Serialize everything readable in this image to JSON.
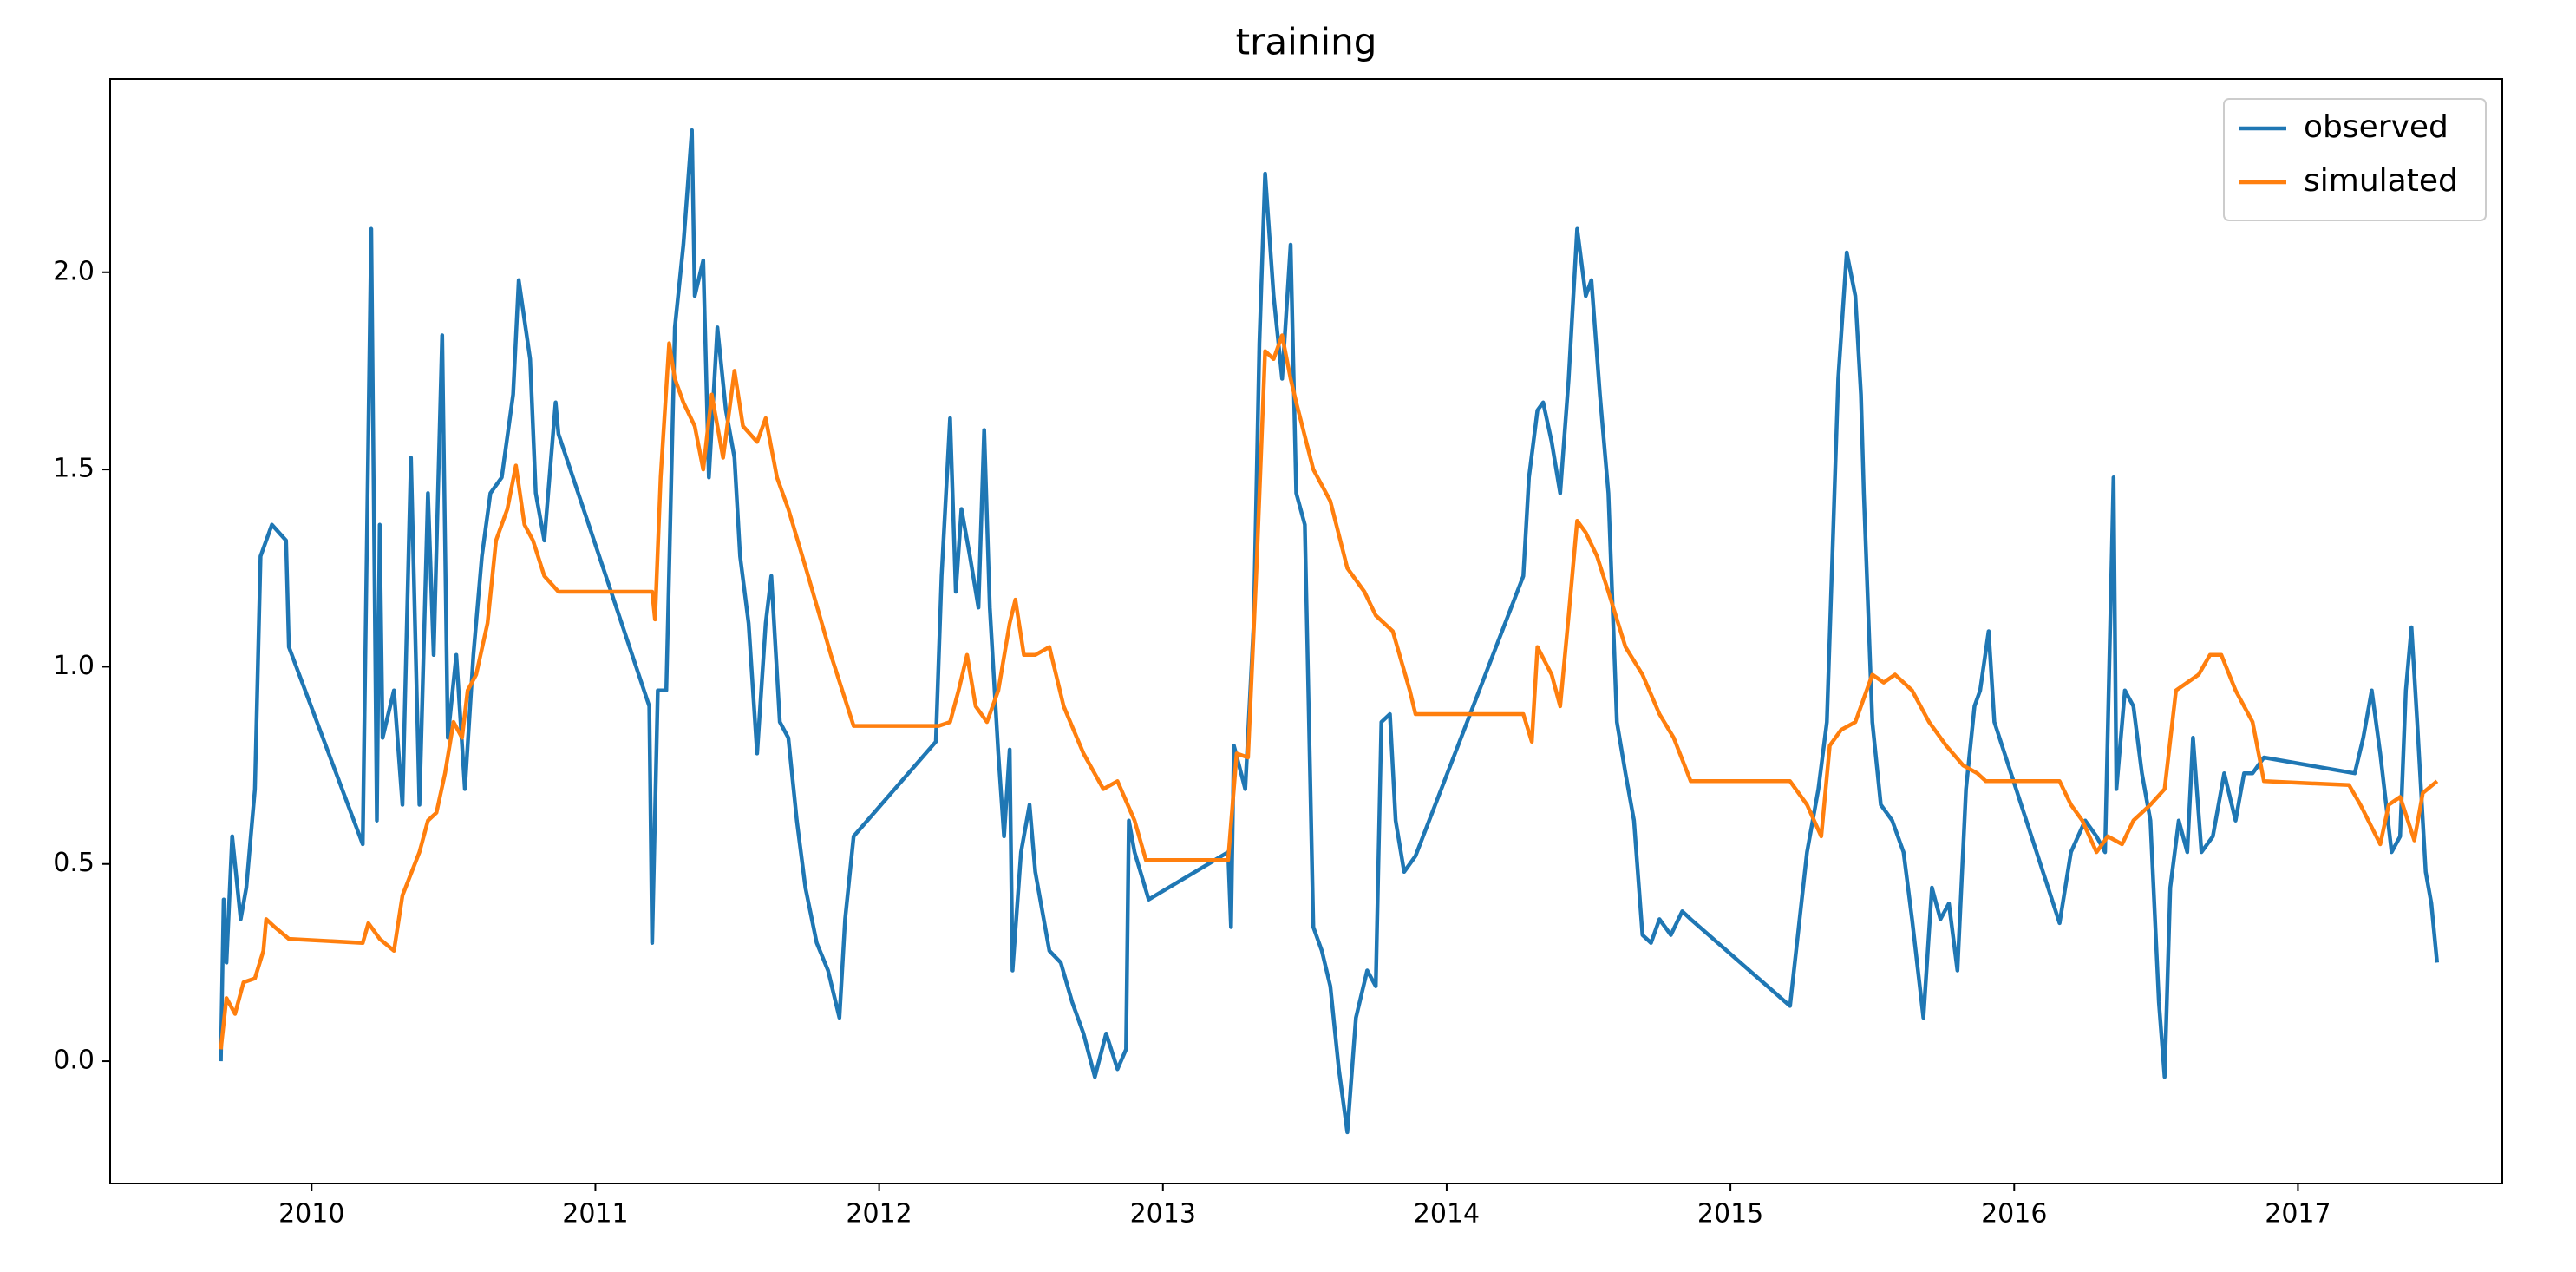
{
  "chart_data": {
    "type": "line",
    "title": "training",
    "xlim": [
      2009.29,
      2017.72
    ],
    "xticks": [
      2010,
      2011,
      2012,
      2013,
      2014,
      2015,
      2016,
      2017
    ],
    "ylim": [
      -0.31,
      2.49
    ],
    "yticks": [
      {
        "value": 0,
        "label": "0.0"
      },
      0.5,
      {
        "value": 1,
        "label": "1.0"
      },
      1.5,
      {
        "value": 2,
        "label": "2.0"
      }
    ],
    "grid": false,
    "legend": "upper right",
    "series": [
      {
        "name": "observed",
        "color": "#1f77b4",
        "x": [
          2009.68,
          2009.69,
          2009.7,
          2009.72,
          2009.75,
          2009.77,
          2009.8,
          2009.82,
          2009.86,
          2009.91,
          2009.92,
          2010.18,
          2010.21,
          2010.23,
          2010.24,
          2010.25,
          2010.29,
          2010.32,
          2010.35,
          2010.38,
          2010.41,
          2010.43,
          2010.46,
          2010.48,
          2010.51,
          2010.54,
          2010.57,
          2010.6,
          2010.63,
          2010.67,
          2010.71,
          2010.73,
          2010.77,
          2010.79,
          2010.82,
          2010.86,
          2010.87,
          2011.19,
          2011.2,
          2011.22,
          2011.25,
          2011.28,
          2011.31,
          2011.34,
          2011.35,
          2011.38,
          2011.4,
          2011.43,
          2011.46,
          2011.49,
          2011.51,
          2011.54,
          2011.57,
          2011.6,
          2011.62,
          2011.65,
          2011.68,
          2011.71,
          2011.74,
          2011.78,
          2011.82,
          2011.86,
          2011.88,
          2011.91,
          2012.2,
          2012.22,
          2012.25,
          2012.27,
          2012.29,
          2012.32,
          2012.35,
          2012.37,
          2012.39,
          2012.42,
          2012.44,
          2012.46,
          2012.47,
          2012.5,
          2012.53,
          2012.55,
          2012.6,
          2012.64,
          2012.68,
          2012.72,
          2012.76,
          2012.8,
          2012.84,
          2012.87,
          2012.88,
          2012.9,
          2012.95,
          2013.23,
          2013.24,
          2013.25,
          2013.29,
          2013.32,
          2013.34,
          2013.36,
          2013.39,
          2013.42,
          2013.45,
          2013.47,
          2013.5,
          2013.53,
          2013.56,
          2013.59,
          2013.62,
          2013.65,
          2013.68,
          2013.72,
          2013.75,
          2013.77,
          2013.8,
          2013.82,
          2013.85,
          2013.89,
          2014.27,
          2014.29,
          2014.32,
          2014.34,
          2014.37,
          2014.4,
          2014.43,
          2014.46,
          2014.49,
          2014.51,
          2014.54,
          2014.57,
          2014.6,
          2014.63,
          2014.66,
          2014.69,
          2014.72,
          2014.75,
          2014.79,
          2014.83,
          2014.86,
          2015.21,
          2015.27,
          2015.31,
          2015.34,
          2015.38,
          2015.41,
          2015.44,
          2015.46,
          2015.47,
          2015.5,
          2015.53,
          2015.57,
          2015.61,
          2015.64,
          2015.68,
          2015.71,
          2015.74,
          2015.77,
          2015.8,
          2015.83,
          2015.86,
          2015.88,
          2015.91,
          2015.93,
          2016.16,
          2016.2,
          2016.25,
          2016.29,
          2016.32,
          2016.35,
          2016.36,
          2016.39,
          2016.42,
          2016.45,
          2016.48,
          2016.51,
          2016.53,
          2016.55,
          2016.58,
          2016.61,
          2016.63,
          2016.66,
          2016.7,
          2016.74,
          2016.78,
          2016.81,
          2016.84,
          2016.88,
          2017.2,
          2017.23,
          2017.26,
          2017.29,
          2017.33,
          2017.36,
          2017.38,
          2017.4,
          2017.42,
          2017.45,
          2017.47,
          2017.49
        ],
        "values": [
          0.0,
          0.41,
          0.25,
          0.57,
          0.36,
          0.44,
          0.69,
          1.28,
          1.36,
          1.32,
          1.05,
          0.55,
          2.11,
          0.61,
          1.36,
          0.82,
          0.94,
          0.65,
          1.53,
          0.65,
          1.44,
          1.03,
          1.84,
          0.82,
          1.03,
          0.69,
          1.03,
          1.28,
          1.44,
          1.48,
          1.69,
          1.98,
          1.78,
          1.44,
          1.32,
          1.67,
          1.59,
          0.9,
          0.3,
          0.94,
          0.94,
          1.86,
          2.07,
          2.36,
          1.94,
          2.03,
          1.48,
          1.86,
          1.65,
          1.53,
          1.28,
          1.11,
          0.78,
          1.11,
          1.23,
          0.86,
          0.82,
          0.61,
          0.44,
          0.3,
          0.23,
          0.11,
          0.36,
          0.57,
          0.81,
          1.23,
          1.63,
          1.19,
          1.4,
          1.28,
          1.15,
          1.6,
          1.15,
          0.78,
          0.57,
          0.79,
          0.23,
          0.53,
          0.65,
          0.48,
          0.28,
          0.25,
          0.15,
          0.07,
          -0.04,
          0.07,
          -0.02,
          0.03,
          0.61,
          0.53,
          0.41,
          0.53,
          0.34,
          0.8,
          0.69,
          1.11,
          1.82,
          2.25,
          1.94,
          1.73,
          2.07,
          1.44,
          1.36,
          0.34,
          0.28,
          0.19,
          -0.02,
          -0.18,
          0.11,
          0.23,
          0.19,
          0.86,
          0.88,
          0.61,
          0.48,
          0.52,
          1.23,
          1.48,
          1.65,
          1.67,
          1.57,
          1.44,
          1.73,
          2.11,
          1.94,
          1.98,
          1.69,
          1.44,
          0.86,
          0.73,
          0.61,
          0.32,
          0.3,
          0.36,
          0.32,
          0.38,
          0.36,
          0.14,
          0.53,
          0.69,
          0.86,
          1.73,
          2.05,
          1.94,
          1.69,
          1.44,
          0.86,
          0.65,
          0.61,
          0.53,
          0.36,
          0.11,
          0.44,
          0.36,
          0.4,
          0.23,
          0.69,
          0.9,
          0.94,
          1.09,
          0.86,
          0.35,
          0.53,
          0.61,
          0.57,
          0.53,
          1.48,
          0.69,
          0.94,
          0.9,
          0.73,
          0.61,
          0.15,
          -0.04,
          0.44,
          0.61,
          0.53,
          0.82,
          0.53,
          0.57,
          0.73,
          0.61,
          0.73,
          0.73,
          0.77,
          0.73,
          0.82,
          0.94,
          0.78,
          0.53,
          0.57,
          0.94,
          1.1,
          0.86,
          0.48,
          0.4,
          0.25
        ]
      },
      {
        "name": "simulated",
        "color": "#ff7f0e",
        "x": [
          2009.68,
          2009.7,
          2009.73,
          2009.76,
          2009.8,
          2009.83,
          2009.84,
          2009.87,
          2009.92,
          2010.18,
          2010.2,
          2010.24,
          2010.29,
          2010.32,
          2010.38,
          2010.41,
          2010.44,
          2010.47,
          2010.5,
          2010.53,
          2010.55,
          2010.58,
          2010.62,
          2010.65,
          2010.69,
          2010.72,
          2010.75,
          2010.78,
          2010.82,
          2010.87,
          2011.2,
          2011.21,
          2011.23,
          2011.26,
          2011.28,
          2011.31,
          2011.35,
          2011.38,
          2011.41,
          2011.45,
          2011.49,
          2011.52,
          2011.57,
          2011.6,
          2011.64,
          2011.68,
          2011.75,
          2011.83,
          2011.91,
          2012.21,
          2012.25,
          2012.28,
          2012.31,
          2012.34,
          2012.38,
          2012.42,
          2012.46,
          2012.48,
          2012.51,
          2012.55,
          2012.6,
          2012.65,
          2012.72,
          2012.79,
          2012.84,
          2012.9,
          2012.94,
          2013.23,
          2013.26,
          2013.3,
          2013.33,
          2013.36,
          2013.39,
          2013.42,
          2013.45,
          2013.47,
          2013.53,
          2013.59,
          2013.65,
          2013.71,
          2013.75,
          2013.81,
          2013.87,
          2013.89,
          2014.27,
          2014.3,
          2014.32,
          2014.37,
          2014.4,
          2014.43,
          2014.46,
          2014.49,
          2014.53,
          2014.57,
          2014.63,
          2014.69,
          2014.75,
          2014.8,
          2014.86,
          2015.21,
          2015.27,
          2015.32,
          2015.35,
          2015.39,
          2015.44,
          2015.5,
          2015.54,
          2015.58,
          2015.64,
          2015.7,
          2015.76,
          2015.82,
          2015.87,
          2015.9,
          2016.16,
          2016.2,
          2016.24,
          2016.29,
          2016.33,
          2016.38,
          2016.42,
          2016.48,
          2016.53,
          2016.57,
          2016.61,
          2016.65,
          2016.69,
          2016.73,
          2016.78,
          2016.84,
          2016.88,
          2017.18,
          2017.22,
          2017.29,
          2017.32,
          2017.36,
          2017.41,
          2017.44,
          2017.49
        ],
        "values": [
          0.03,
          0.16,
          0.12,
          0.2,
          0.21,
          0.28,
          0.36,
          0.34,
          0.31,
          0.3,
          0.35,
          0.31,
          0.28,
          0.42,
          0.53,
          0.61,
          0.63,
          0.73,
          0.86,
          0.82,
          0.94,
          0.98,
          1.11,
          1.32,
          1.4,
          1.51,
          1.36,
          1.32,
          1.23,
          1.19,
          1.19,
          1.12,
          1.48,
          1.82,
          1.73,
          1.67,
          1.61,
          1.5,
          1.69,
          1.53,
          1.75,
          1.61,
          1.57,
          1.63,
          1.48,
          1.4,
          1.23,
          1.03,
          0.85,
          0.85,
          0.86,
          0.94,
          1.03,
          0.9,
          0.86,
          0.94,
          1.11,
          1.17,
          1.03,
          1.03,
          1.05,
          0.9,
          0.78,
          0.69,
          0.71,
          0.61,
          0.51,
          0.51,
          0.78,
          0.77,
          1.25,
          1.8,
          1.78,
          1.84,
          1.73,
          1.67,
          1.5,
          1.42,
          1.25,
          1.19,
          1.13,
          1.09,
          0.94,
          0.88,
          0.88,
          0.81,
          1.05,
          0.98,
          0.9,
          1.13,
          1.37,
          1.34,
          1.28,
          1.19,
          1.05,
          0.98,
          0.88,
          0.82,
          0.71,
          0.71,
          0.65,
          0.57,
          0.8,
          0.84,
          0.86,
          0.98,
          0.96,
          0.98,
          0.94,
          0.86,
          0.8,
          0.75,
          0.73,
          0.71,
          0.71,
          0.65,
          0.61,
          0.53,
          0.57,
          0.55,
          0.61,
          0.65,
          0.69,
          0.94,
          0.96,
          0.98,
          1.03,
          1.03,
          0.94,
          0.86,
          0.71,
          0.7,
          0.65,
          0.55,
          0.65,
          0.67,
          0.56,
          0.68,
          0.71
        ]
      }
    ]
  }
}
